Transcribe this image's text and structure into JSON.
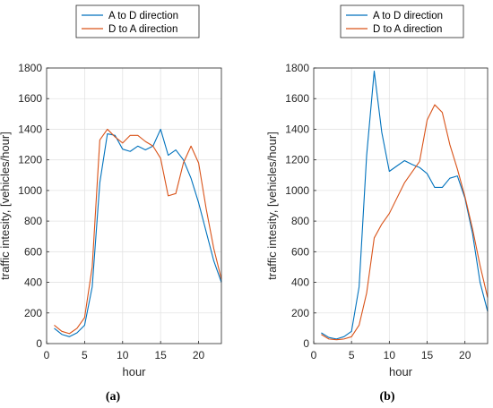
{
  "chart_data": [
    {
      "type": "line",
      "panel_label": "(a)",
      "xlabel": "hour",
      "ylabel": "traffic intesity, [vehicles/hour]",
      "xlim": [
        0,
        23
      ],
      "ylim": [
        0,
        1800
      ],
      "xticks": [
        0,
        5,
        10,
        15,
        20
      ],
      "yticks": [
        0,
        200,
        400,
        600,
        800,
        1000,
        1200,
        1400,
        1600,
        1800
      ],
      "grid": true,
      "legend_position": "top-center",
      "x": [
        1,
        2,
        3,
        4,
        5,
        6,
        7,
        8,
        9,
        10,
        11,
        12,
        13,
        14,
        15,
        16,
        17,
        18,
        19,
        20,
        21,
        22,
        23
      ],
      "series": [
        {
          "name": "A to D direction",
          "color": "#0072BD",
          "values": [
            100,
            60,
            45,
            70,
            120,
            370,
            1050,
            1370,
            1360,
            1270,
            1255,
            1290,
            1265,
            1290,
            1400,
            1230,
            1265,
            1200,
            1080,
            920,
            730,
            540,
            400
          ]
        },
        {
          "name": "D to A direction",
          "color": "#D95319",
          "values": [
            120,
            80,
            65,
            100,
            170,
            500,
            1330,
            1400,
            1350,
            1310,
            1360,
            1360,
            1320,
            1290,
            1210,
            965,
            980,
            1180,
            1290,
            1180,
            880,
            620,
            420
          ]
        }
      ]
    },
    {
      "type": "line",
      "panel_label": "(b)",
      "xlabel": "hour",
      "ylabel": "traffic intesity, [vehicles/hour]",
      "xlim": [
        0,
        23
      ],
      "ylim": [
        0,
        1800
      ],
      "xticks": [
        0,
        5,
        10,
        15,
        20
      ],
      "yticks": [
        0,
        200,
        400,
        600,
        800,
        1000,
        1200,
        1400,
        1600,
        1800
      ],
      "grid": true,
      "legend_position": "top-center",
      "x": [
        1,
        2,
        3,
        4,
        5,
        6,
        7,
        8,
        9,
        10,
        11,
        12,
        13,
        14,
        15,
        16,
        17,
        18,
        19,
        20,
        21,
        22,
        23
      ],
      "series": [
        {
          "name": "A to D direction",
          "color": "#0072BD",
          "values": [
            70,
            40,
            30,
            45,
            80,
            370,
            1230,
            1780,
            1380,
            1125,
            1160,
            1195,
            1170,
            1150,
            1110,
            1020,
            1020,
            1080,
            1095,
            950,
            720,
            400,
            210
          ]
        },
        {
          "name": "D to A direction",
          "color": "#D95319",
          "values": [
            60,
            30,
            25,
            30,
            45,
            120,
            330,
            690,
            780,
            850,
            950,
            1050,
            1120,
            1190,
            1460,
            1560,
            1510,
            1300,
            1140,
            960,
            750,
            510,
            300
          ]
        }
      ]
    }
  ]
}
